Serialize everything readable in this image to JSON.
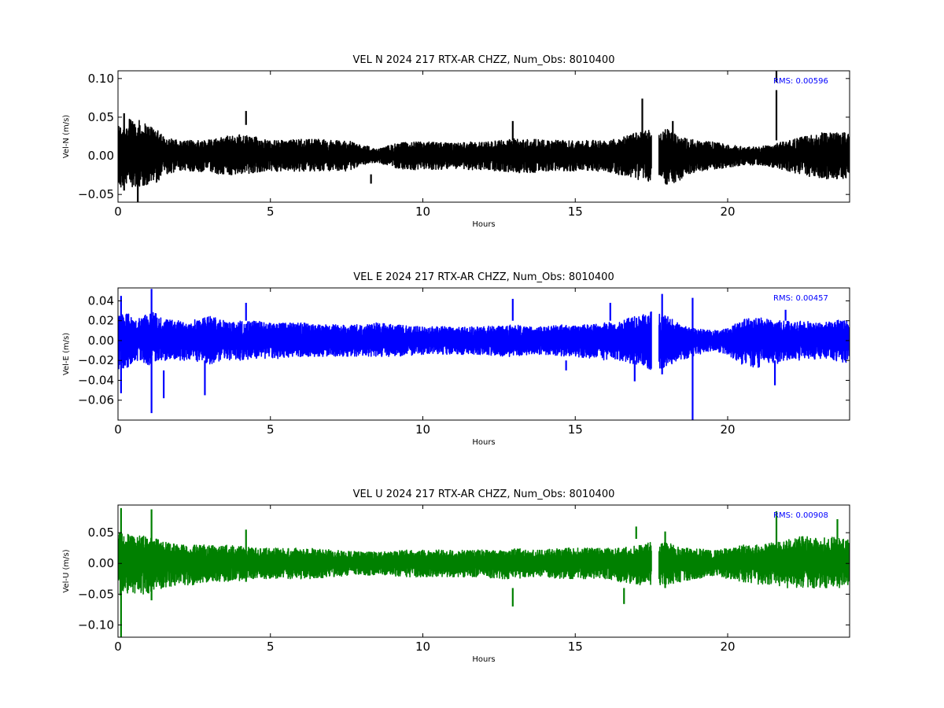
{
  "chart_data": [
    {
      "type": "line",
      "title": "VEL N 2024 217 RTX-AR  CHZZ, Num_Obs: 8010400",
      "xlabel": "Hours",
      "ylabel": "Vel-N (m/s)",
      "xlim": [
        0,
        24
      ],
      "ylim": [
        -0.06,
        0.11
      ],
      "x_ticks": [
        0,
        5,
        10,
        15,
        20
      ],
      "x_tick_labels": [
        "0",
        "5",
        "10",
        "15",
        "20"
      ],
      "y_ticks": [
        -0.05,
        0.0,
        0.05,
        0.1
      ],
      "y_tick_labels": [
        "−0.05",
        "0.00",
        "0.05",
        "0.10"
      ],
      "annotation": "RMS:  0.00596",
      "annotation_color": "#0000ff",
      "color": "#000000",
      "grid": false,
      "data_gap_hours": [
        17.5,
        17.75
      ],
      "series": [
        {
          "x": [
            0,
            0.25,
            0.5,
            0.75,
            1,
            1.25,
            1.5,
            2,
            2.5,
            3,
            3.5,
            4,
            4.5,
            5,
            5.5,
            6,
            6.5,
            7,
            7.5,
            8,
            8.5,
            9,
            9.5,
            10,
            10.5,
            11,
            11.5,
            12,
            12.5,
            13,
            13.5,
            14,
            14.5,
            15,
            15.5,
            16,
            16.5,
            17,
            17.5,
            17.75,
            18,
            18.5,
            19,
            19.5,
            20,
            20.5,
            21,
            21.5,
            22,
            22.5,
            23,
            23.5,
            24
          ],
          "upper": [
            0.04,
            0.045,
            0.05,
            0.045,
            0.04,
            0.04,
            0.025,
            0.02,
            0.02,
            0.022,
            0.025,
            0.028,
            0.025,
            0.02,
            0.02,
            0.022,
            0.022,
            0.02,
            0.02,
            0.015,
            0.008,
            0.015,
            0.018,
            0.018,
            0.018,
            0.016,
            0.018,
            0.018,
            0.02,
            0.022,
            0.022,
            0.02,
            0.02,
            0.02,
            0.02,
            0.02,
            0.025,
            0.03,
            0.035,
            0.03,
            0.035,
            0.025,
            0.02,
            0.018,
            0.015,
            0.012,
            0.012,
            0.015,
            0.02,
            0.025,
            0.03,
            0.03,
            0.03
          ],
          "lower": [
            -0.045,
            -0.04,
            -0.04,
            -0.04,
            -0.04,
            -0.035,
            -0.025,
            -0.02,
            -0.02,
            -0.022,
            -0.025,
            -0.025,
            -0.022,
            -0.02,
            -0.02,
            -0.02,
            -0.02,
            -0.02,
            -0.02,
            -0.012,
            -0.008,
            -0.015,
            -0.018,
            -0.018,
            -0.018,
            -0.016,
            -0.018,
            -0.018,
            -0.02,
            -0.022,
            -0.022,
            -0.02,
            -0.02,
            -0.02,
            -0.02,
            -0.02,
            -0.025,
            -0.03,
            -0.035,
            -0.035,
            -0.04,
            -0.03,
            -0.02,
            -0.018,
            -0.015,
            -0.012,
            -0.012,
            -0.015,
            -0.02,
            -0.025,
            -0.03,
            -0.03,
            -0.03
          ]
        }
      ],
      "spikes": [
        {
          "x": 0.2,
          "lo": -0.045,
          "hi": 0.055
        },
        {
          "x": 0.65,
          "lo": -0.06,
          "hi": 0.03
        },
        {
          "x": 4.2,
          "lo": 0.04,
          "hi": 0.058
        },
        {
          "x": 8.3,
          "lo": -0.036,
          "hi": -0.024
        },
        {
          "x": 12.95,
          "lo": 0.02,
          "hi": 0.045
        },
        {
          "x": 17.2,
          "lo": 0.02,
          "hi": 0.074
        },
        {
          "x": 18.2,
          "lo": 0.02,
          "hi": 0.045
        },
        {
          "x": 21.6,
          "lo": 0.02,
          "hi": 0.085
        },
        {
          "x": 21.6,
          "lo": 0.095,
          "hi": 0.11
        }
      ]
    },
    {
      "type": "line",
      "title": "VEL E 2024 217 RTX-AR  CHZZ, Num_Obs: 8010400",
      "xlabel": "Hours",
      "ylabel": "Vel-E (m/s)",
      "xlim": [
        0,
        24
      ],
      "ylim": [
        -0.08,
        0.053
      ],
      "x_ticks": [
        0,
        5,
        10,
        15,
        20
      ],
      "x_tick_labels": [
        "0",
        "5",
        "10",
        "15",
        "20"
      ],
      "y_ticks": [
        -0.06,
        -0.04,
        -0.02,
        0.0,
        0.02,
        0.04
      ],
      "y_tick_labels": [
        "−0.06",
        "−0.04",
        "−0.02",
        "0.00",
        "0.02",
        "0.04"
      ],
      "annotation": "RMS:  0.00457",
      "annotation_color": "#0000ff",
      "color": "#0000ff",
      "grid": false,
      "data_gap_hours": [
        17.5,
        17.75
      ],
      "series": [
        {
          "x": [
            0,
            0.25,
            0.5,
            0.75,
            1,
            1.25,
            1.5,
            2,
            2.5,
            3,
            3.5,
            4,
            4.5,
            5,
            5.5,
            6,
            6.5,
            7,
            7.5,
            8,
            8.5,
            9,
            9.5,
            10,
            10.5,
            11,
            11.5,
            12,
            12.5,
            13,
            13.5,
            14,
            14.5,
            15,
            15.5,
            16,
            16.5,
            17,
            17.5,
            17.75,
            18,
            18.5,
            19,
            19.5,
            20,
            20.5,
            21,
            21.5,
            22,
            22.5,
            23,
            23.5,
            24
          ],
          "upper": [
            0.025,
            0.028,
            0.025,
            0.022,
            0.03,
            0.028,
            0.022,
            0.02,
            0.022,
            0.025,
            0.02,
            0.02,
            0.02,
            0.018,
            0.018,
            0.018,
            0.016,
            0.016,
            0.016,
            0.016,
            0.018,
            0.016,
            0.015,
            0.014,
            0.014,
            0.014,
            0.014,
            0.014,
            0.016,
            0.016,
            0.014,
            0.014,
            0.016,
            0.016,
            0.016,
            0.018,
            0.02,
            0.025,
            0.03,
            0.028,
            0.025,
            0.015,
            0.012,
            0.01,
            0.012,
            0.022,
            0.025,
            0.02,
            0.02,
            0.02,
            0.018,
            0.02,
            0.022
          ],
          "lower": [
            -0.03,
            -0.028,
            -0.025,
            -0.02,
            -0.025,
            -0.02,
            -0.02,
            -0.02,
            -0.02,
            -0.025,
            -0.02,
            -0.02,
            -0.018,
            -0.018,
            -0.018,
            -0.016,
            -0.016,
            -0.016,
            -0.016,
            -0.016,
            -0.016,
            -0.016,
            -0.015,
            -0.014,
            -0.014,
            -0.014,
            -0.014,
            -0.014,
            -0.016,
            -0.016,
            -0.014,
            -0.014,
            -0.016,
            -0.016,
            -0.018,
            -0.02,
            -0.02,
            -0.025,
            -0.03,
            -0.03,
            -0.025,
            -0.02,
            -0.015,
            -0.01,
            -0.014,
            -0.025,
            -0.028,
            -0.025,
            -0.02,
            -0.02,
            -0.018,
            -0.02,
            -0.025
          ]
        }
      ],
      "spikes": [
        {
          "x": 0.1,
          "lo": -0.053,
          "hi": 0.045
        },
        {
          "x": 1.1,
          "lo": -0.073,
          "hi": 0.052
        },
        {
          "x": 1.5,
          "lo": -0.058,
          "hi": -0.03
        },
        {
          "x": 2.85,
          "lo": -0.055,
          "hi": -0.02
        },
        {
          "x": 4.2,
          "lo": 0.02,
          "hi": 0.038
        },
        {
          "x": 12.95,
          "lo": 0.02,
          "hi": 0.042
        },
        {
          "x": 14.7,
          "lo": -0.03,
          "hi": -0.02
        },
        {
          "x": 16.15,
          "lo": 0.02,
          "hi": 0.038
        },
        {
          "x": 16.95,
          "lo": -0.041,
          "hi": -0.02
        },
        {
          "x": 17.85,
          "lo": -0.034,
          "hi": 0.047
        },
        {
          "x": 18.85,
          "lo": -0.08,
          "hi": 0.043
        },
        {
          "x": 21.55,
          "lo": -0.045,
          "hi": -0.02
        },
        {
          "x": 21.9,
          "lo": 0.02,
          "hi": 0.031
        }
      ]
    },
    {
      "type": "line",
      "title": "VEL U 2024 217 RTX-AR  CHZZ, Num_Obs: 8010400",
      "xlabel": "Hours",
      "ylabel": "Vel-U (m/s)",
      "xlim": [
        0,
        24
      ],
      "ylim": [
        -0.12,
        0.095
      ],
      "x_ticks": [
        0,
        5,
        10,
        15,
        20
      ],
      "x_tick_labels": [
        "0",
        "5",
        "10",
        "15",
        "20"
      ],
      "y_ticks": [
        -0.1,
        -0.05,
        0.0,
        0.05
      ],
      "y_tick_labels": [
        "−0.10",
        "−0.05",
        "0.00",
        "0.05"
      ],
      "annotation": "RMS:  0.00908",
      "annotation_color": "#0000ff",
      "color": "#008000",
      "grid": false,
      "data_gap_hours": [
        17.5,
        17.75
      ],
      "series": [
        {
          "x": [
            0,
            0.25,
            0.5,
            0.75,
            1,
            1.25,
            1.5,
            2,
            2.5,
            3,
            3.5,
            4,
            4.5,
            5,
            5.5,
            6,
            6.5,
            7,
            7.5,
            8,
            8.5,
            9,
            9.5,
            10,
            10.5,
            11,
            11.5,
            12,
            12.5,
            13,
            13.5,
            14,
            14.5,
            15,
            15.5,
            16,
            16.5,
            17,
            17.5,
            17.75,
            18,
            18.5,
            19,
            19.5,
            20,
            20.5,
            21,
            21.5,
            22,
            22.5,
            23,
            23.5,
            24
          ],
          "upper": [
            0.05,
            0.048,
            0.045,
            0.045,
            0.045,
            0.04,
            0.035,
            0.03,
            0.03,
            0.03,
            0.03,
            0.028,
            0.025,
            0.025,
            0.025,
            0.025,
            0.025,
            0.022,
            0.02,
            0.02,
            0.018,
            0.02,
            0.022,
            0.022,
            0.022,
            0.022,
            0.022,
            0.022,
            0.022,
            0.025,
            0.022,
            0.022,
            0.025,
            0.025,
            0.025,
            0.025,
            0.025,
            0.03,
            0.035,
            0.032,
            0.035,
            0.025,
            0.025,
            0.02,
            0.025,
            0.03,
            0.03,
            0.035,
            0.04,
            0.045,
            0.04,
            0.045,
            0.04
          ],
          "lower": [
            -0.06,
            -0.05,
            -0.05,
            -0.05,
            -0.05,
            -0.045,
            -0.04,
            -0.035,
            -0.035,
            -0.03,
            -0.03,
            -0.028,
            -0.025,
            -0.025,
            -0.025,
            -0.025,
            -0.025,
            -0.022,
            -0.02,
            -0.02,
            -0.018,
            -0.02,
            -0.022,
            -0.022,
            -0.022,
            -0.022,
            -0.022,
            -0.022,
            -0.025,
            -0.025,
            -0.022,
            -0.022,
            -0.025,
            -0.025,
            -0.025,
            -0.025,
            -0.03,
            -0.035,
            -0.035,
            -0.035,
            -0.035,
            -0.03,
            -0.025,
            -0.02,
            -0.025,
            -0.03,
            -0.035,
            -0.035,
            -0.04,
            -0.04,
            -0.04,
            -0.04,
            -0.04
          ]
        }
      ],
      "spikes": [
        {
          "x": 0.1,
          "lo": -0.12,
          "hi": 0.09
        },
        {
          "x": 1.1,
          "lo": -0.06,
          "hi": 0.088
        },
        {
          "x": 4.2,
          "lo": -0.03,
          "hi": 0.055
        },
        {
          "x": 12.95,
          "lo": -0.07,
          "hi": -0.04
        },
        {
          "x": 16.6,
          "lo": -0.066,
          "hi": -0.04
        },
        {
          "x": 17.0,
          "lo": 0.04,
          "hi": 0.06
        },
        {
          "x": 17.95,
          "lo": -0.04,
          "hi": 0.052
        },
        {
          "x": 21.6,
          "lo": -0.02,
          "hi": 0.085
        },
        {
          "x": 23.6,
          "lo": 0.04,
          "hi": 0.072
        }
      ]
    }
  ]
}
